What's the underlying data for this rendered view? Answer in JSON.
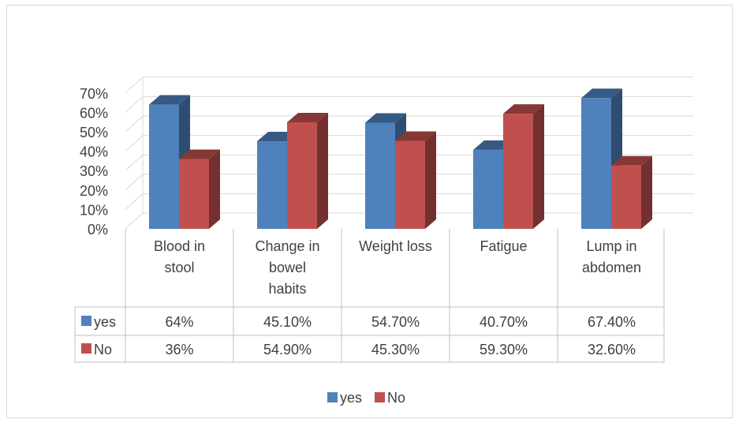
{
  "chart_data": {
    "type": "bar",
    "style": "3d-clustered-column-with-data-table",
    "categories": [
      [
        "Blood in",
        "stool"
      ],
      [
        "Change in",
        "bowel",
        "habits"
      ],
      [
        "Weight loss"
      ],
      [
        "Fatigue"
      ],
      [
        "Lump in",
        "abdomen"
      ]
    ],
    "series": [
      {
        "name": "yes",
        "color": "#4f81bd",
        "values": [
          64,
          45.1,
          54.7,
          40.7,
          67.4
        ],
        "labels": [
          "64%",
          "45.10%",
          "54.70%",
          "40.70%",
          "67.40%"
        ]
      },
      {
        "name": "No",
        "color": "#c0504d",
        "values": [
          36,
          54.9,
          45.3,
          59.3,
          32.6
        ],
        "labels": [
          "36%",
          "54.90%",
          "45.30%",
          "59.30%",
          "32.60%"
        ]
      }
    ],
    "ylim": [
      0,
      70
    ],
    "yticks": [
      0,
      10,
      20,
      30,
      40,
      50,
      60,
      70
    ],
    "ytick_labels": [
      "0%",
      "10%",
      "20%",
      "30%",
      "40%",
      "50%",
      "60%",
      "70%"
    ],
    "grid": true,
    "legend": "bottom"
  }
}
